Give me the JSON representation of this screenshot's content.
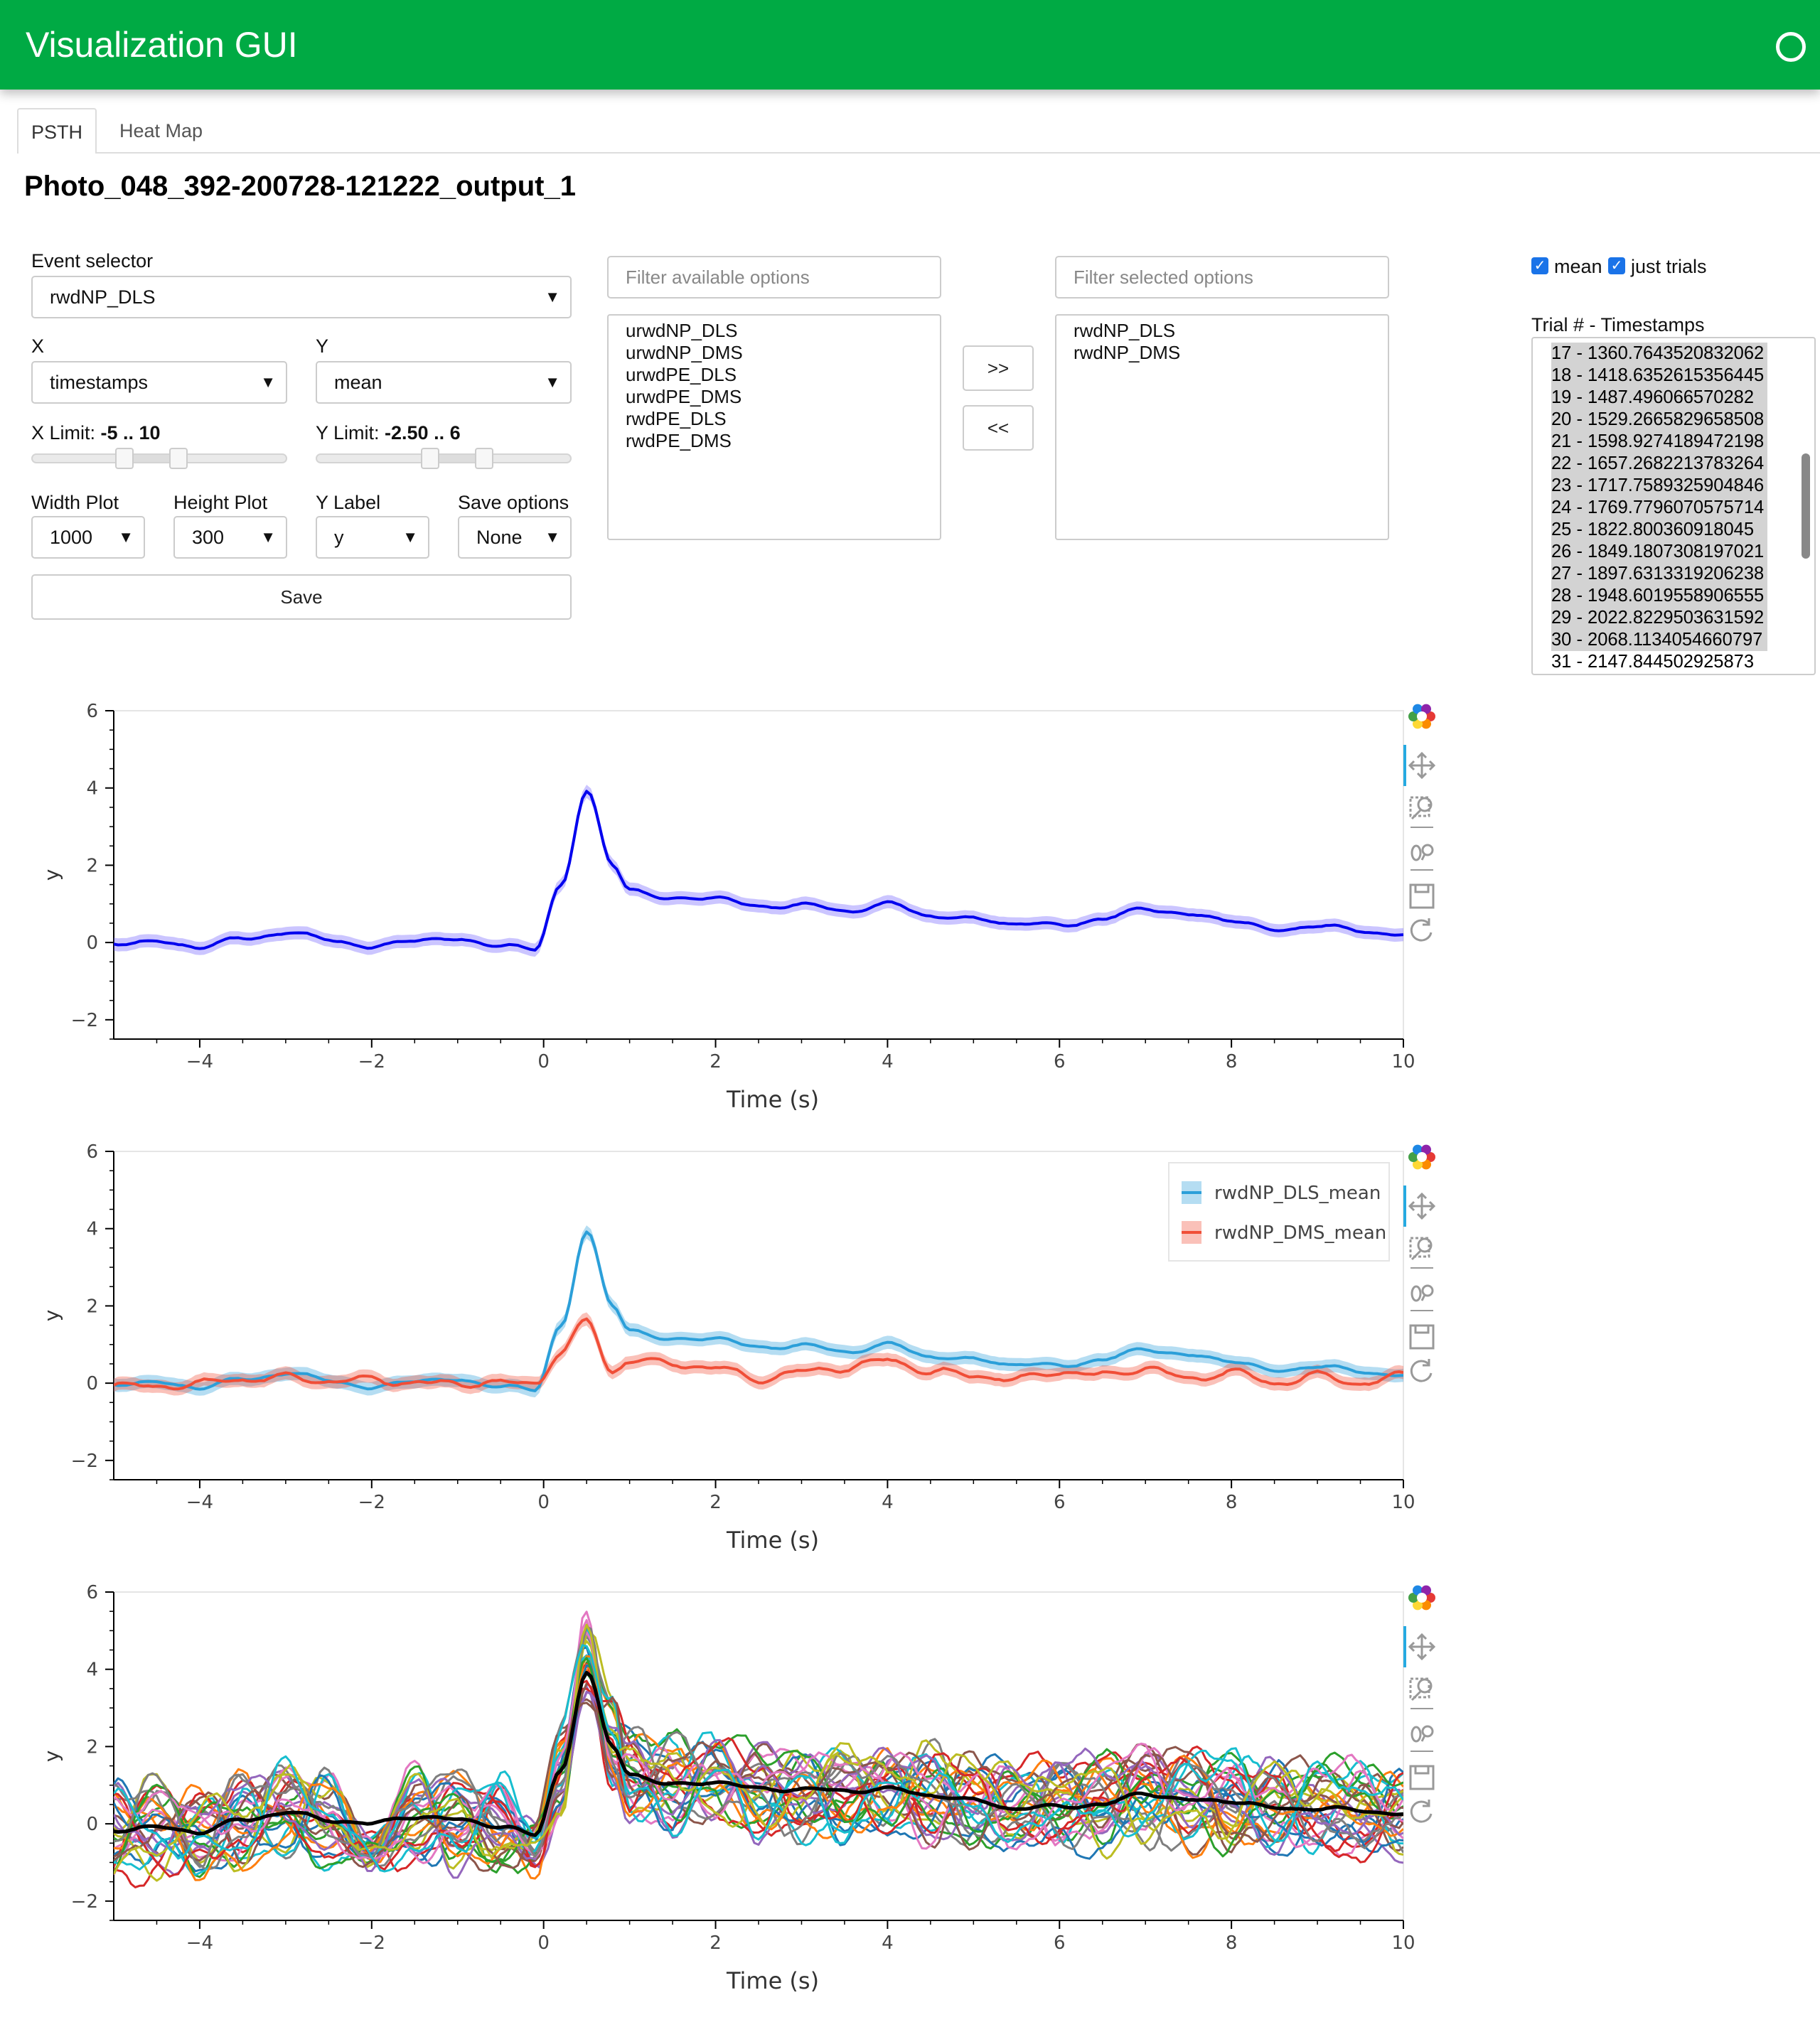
{
  "app": {
    "title": "Visualization GUI"
  },
  "tabs": [
    {
      "label": "PSTH",
      "active": true
    },
    {
      "label": "Heat Map",
      "active": false
    }
  ],
  "page_title": "Photo_048_392-200728-121222_output_1",
  "controls": {
    "event_selector": {
      "label": "Event selector",
      "value": "rwdNP_DLS"
    },
    "x": {
      "label": "X",
      "value": "timestamps"
    },
    "y": {
      "label": "Y",
      "value": "mean"
    },
    "x_limit": {
      "label": "X Limit: ",
      "value": "-5 .. 10",
      "min": -5,
      "max": 10
    },
    "y_limit": {
      "label": "Y Limit: ",
      "value": "-2.50 .. 6",
      "min": -2.5,
      "max": 6
    },
    "width_plot": {
      "label": "Width Plot",
      "value": "1000"
    },
    "height_plot": {
      "label": "Height Plot",
      "value": "300"
    },
    "y_label": {
      "label": "Y Label",
      "value": "y"
    },
    "save_options": {
      "label": "Save options",
      "value": "None"
    },
    "save_button": "Save"
  },
  "cross_selector": {
    "available_placeholder": "Filter available options",
    "selected_placeholder": "Filter selected options",
    "available": [
      "urwdNP_DLS",
      "urwdNP_DMS",
      "urwdPE_DLS",
      "urwdPE_DMS",
      "rwdPE_DLS",
      "rwdPE_DMS"
    ],
    "selected": [
      "rwdNP_DLS",
      "rwdNP_DMS"
    ],
    "add_label": ">>",
    "remove_label": "<<"
  },
  "checkboxes": {
    "mean": "mean",
    "just_trials": "just trials"
  },
  "trials": {
    "label": "Trial # - Timestamps",
    "items": [
      "17 - 1360.7643520832062",
      "18 - 1418.6352615356445",
      "19 - 1487.496066570282",
      "20 - 1529.2665829658508",
      "21 - 1598.9274189472198",
      "22 - 1657.2682213783264",
      "23 - 1717.7589325904846",
      "24 - 1769.7796070575714",
      "25 - 1822.800360918045",
      "26 - 1849.1807308197021",
      "27 - 1897.6313319206238",
      "28 - 1948.6019558906555",
      "29 - 2022.8229503631592",
      "30 - 2068.1134054660797",
      "31 - 2147.844502925873"
    ],
    "selected_count_visible": 14
  },
  "colors": {
    "header": "#00aa44",
    "dls": "#2b9fd9",
    "dms": "#f04e37",
    "mean_line": "#0000ee"
  },
  "chart_data": [
    {
      "type": "line",
      "xlabel": "Time (s)",
      "ylabel": "y",
      "xlim": [
        -5,
        10
      ],
      "ylim": [
        -2.5,
        6
      ],
      "x_ticks": [
        "−4",
        "−2",
        "0",
        "2",
        "4",
        "6",
        "8",
        "10"
      ],
      "y_ticks": [
        "−2",
        "0",
        "2",
        "4",
        "6"
      ],
      "x": [
        -5,
        -4.5,
        -4,
        -3.5,
        -3,
        -2.5,
        -2,
        -1.5,
        -1,
        -0.5,
        -0.1,
        0.2,
        0.5,
        0.8,
        1.0,
        1.5,
        2,
        2.5,
        3,
        3.5,
        4,
        4.5,
        5,
        5.5,
        6,
        6.5,
        7,
        7.5,
        8,
        8.5,
        9,
        9.5,
        10
      ],
      "series": [
        {
          "y": [
            0.0,
            0.0,
            -0.1,
            0.1,
            0.25,
            0.1,
            -0.15,
            0.1,
            0.05,
            -0.05,
            -0.2,
            1.5,
            3.9,
            2.0,
            1.4,
            1.1,
            1.2,
            0.9,
            1.0,
            0.8,
            1.0,
            0.7,
            0.6,
            0.5,
            0.45,
            0.6,
            0.9,
            0.7,
            0.6,
            0.3,
            0.45,
            0.3,
            0.2
          ]
        }
      ]
    },
    {
      "type": "line",
      "xlabel": "Time (s)",
      "ylabel": "y",
      "xlim": [
        -5,
        10
      ],
      "ylim": [
        -2.5,
        6
      ],
      "x_ticks": [
        "−4",
        "−2",
        "0",
        "2",
        "4",
        "6",
        "8",
        "10"
      ],
      "y_ticks": [
        "−2",
        "0",
        "2",
        "4",
        "6"
      ],
      "legend": "top-right",
      "x": [
        -5,
        -4.5,
        -4,
        -3.5,
        -3,
        -2.5,
        -2,
        -1.5,
        -1,
        -0.5,
        -0.1,
        0.2,
        0.5,
        0.8,
        1.0,
        1.5,
        2,
        2.5,
        3,
        3.5,
        4,
        4.5,
        5,
        5.5,
        6,
        6.5,
        7,
        7.5,
        8,
        8.5,
        9,
        9.5,
        10
      ],
      "series": [
        {
          "name": "rwdNP_DLS_mean",
          "y": [
            0.0,
            0.0,
            -0.1,
            0.1,
            0.25,
            0.1,
            -0.15,
            0.1,
            0.05,
            -0.05,
            -0.2,
            1.5,
            3.9,
            2.0,
            1.4,
            1.1,
            1.2,
            0.9,
            1.0,
            0.8,
            1.0,
            0.7,
            0.6,
            0.5,
            0.45,
            0.6,
            0.9,
            0.7,
            0.6,
            0.3,
            0.45,
            0.3,
            0.2
          ]
        },
        {
          "name": "rwdNP_DMS_mean",
          "y": [
            -0.05,
            -0.1,
            0.0,
            0.1,
            0.15,
            0.05,
            0.1,
            0.0,
            0.0,
            0.0,
            0.0,
            0.8,
            1.6,
            0.3,
            0.6,
            0.5,
            0.4,
            0.1,
            0.3,
            0.4,
            0.6,
            0.3,
            0.2,
            0.1,
            0.3,
            0.2,
            0.4,
            0.1,
            0.3,
            0.0,
            0.2,
            0.0,
            0.2
          ]
        }
      ]
    },
    {
      "type": "line",
      "xlabel": "Time (s)",
      "ylabel": "y",
      "xlim": [
        -5,
        10
      ],
      "ylim": [
        -2.5,
        6
      ],
      "x_ticks": [
        "−4",
        "−2",
        "0",
        "2",
        "4",
        "6",
        "8",
        "10"
      ],
      "y_ticks": [
        "−2",
        "0",
        "2",
        "4",
        "6"
      ],
      "x": [
        -5,
        -4.5,
        -4,
        -3.5,
        -3,
        -2.5,
        -2,
        -1.5,
        -1,
        -0.5,
        -0.1,
        0.2,
        0.5,
        0.8,
        1.0,
        1.5,
        2,
        2.5,
        3,
        3.5,
        4,
        4.5,
        5,
        5.5,
        6,
        6.5,
        7,
        7.5,
        8,
        8.5,
        9,
        9.5,
        10
      ],
      "series": [
        {
          "name": "mean",
          "y": [
            -0.15,
            -0.1,
            -0.2,
            0.1,
            0.3,
            0.1,
            0.0,
            0.2,
            0.1,
            -0.05,
            -0.3,
            1.4,
            3.9,
            2.0,
            1.3,
            1.0,
            1.1,
            0.9,
            0.9,
            0.85,
            0.9,
            0.75,
            0.6,
            0.4,
            0.45,
            0.5,
            0.8,
            0.6,
            0.6,
            0.4,
            0.4,
            0.35,
            0.25
          ]
        }
      ],
      "trial_count": 30
    }
  ]
}
